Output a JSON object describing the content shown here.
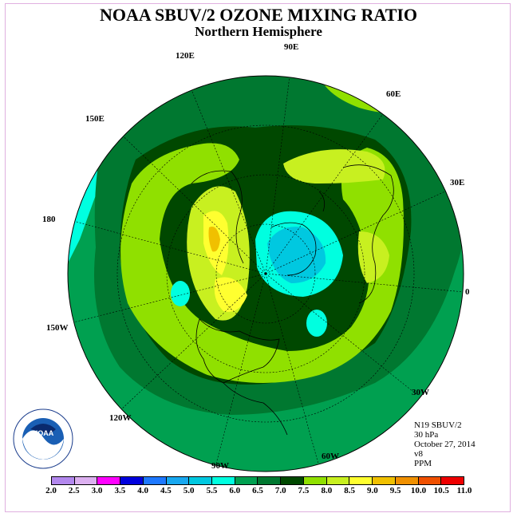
{
  "title": "NOAA SBUV/2 OZONE MIXING RATIO",
  "subtitle": "Northern Hemisphere",
  "longitude_labels": {
    "e90": "90E",
    "e60": "60E",
    "e30": "30E",
    "zero": "0",
    "w30": "30W",
    "w60": "60W",
    "w90": "90W",
    "w120": "120W",
    "w150": "150W",
    "d180": "180",
    "e150": "150E",
    "e120": "120E"
  },
  "info": {
    "satellite": "N19 SBUV/2",
    "level": "30 hPa",
    "date": "October 27, 2014",
    "version": "v8",
    "units": "PPM"
  },
  "logo": {
    "text": "NOAA",
    "ring_text": "NATIONAL OCEANIC AND ATMOSPHERIC ADMINISTRATION · U.S. DEPARTMENT OF COMMERCE"
  },
  "colorbar": {
    "ticks": [
      "2.0",
      "2.5",
      "3.0",
      "3.5",
      "4.0",
      "4.5",
      "5.0",
      "5.5",
      "6.0",
      "6.5",
      "7.0",
      "7.5",
      "8.0",
      "8.5",
      "9.0",
      "9.5",
      "10.0",
      "10.5",
      "11.0"
    ],
    "colors": [
      "#b388ee",
      "#dcb0f0",
      "#ff00ff",
      "#0000dd",
      "#1e78ff",
      "#18a8f0",
      "#00c8e0",
      "#00ffe0",
      "#00a050",
      "#007830",
      "#004800",
      "#90e000",
      "#c8f020",
      "#ffff30",
      "#f0c000",
      "#f09000",
      "#f05000",
      "#ee0000",
      "#8b5a2b"
    ]
  }
}
